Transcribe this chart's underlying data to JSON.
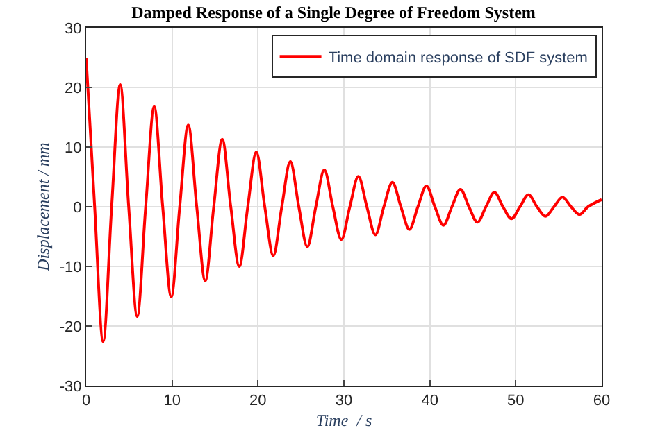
{
  "chart_data": {
    "type": "line",
    "title": "Damped Response of a Single Degree of Freedom System",
    "xlabel": "Time  / s",
    "ylabel": "Displacement / mm",
    "series": [
      {
        "name": "Time domain response of SDF system",
        "color": "#ff0000",
        "x": [
          0,
          0.99,
          1.98,
          2.97,
          3.96,
          4.95,
          5.94,
          6.93,
          7.92,
          8.91,
          9.9,
          10.89,
          11.88,
          12.87,
          13.86,
          14.85,
          15.84,
          16.83,
          17.82,
          18.81,
          19.8,
          20.79,
          21.78,
          22.77,
          23.76,
          24.75,
          25.74,
          26.73,
          27.72,
          28.71,
          29.7,
          30.69,
          31.68,
          32.67,
          33.66,
          34.65,
          35.64,
          36.63,
          37.62,
          38.61,
          39.6,
          40.59,
          41.58,
          42.57,
          43.56,
          44.55,
          45.54,
          46.53,
          47.52,
          48.51,
          49.5,
          50.49,
          51.48,
          52.47,
          53.46,
          54.45,
          55.44,
          56.43,
          57.42,
          58.41,
          60
        ],
        "values": [
          25,
          0,
          -22.6,
          0,
          20.5,
          0,
          -18.4,
          0,
          16.8,
          0,
          -15.1,
          0,
          13.7,
          0,
          -12.4,
          0,
          11.3,
          0,
          -10,
          0,
          9.2,
          0,
          -8.2,
          0,
          7.6,
          0,
          -6.7,
          0,
          6.2,
          0,
          -5.5,
          0,
          5.1,
          0,
          -4.7,
          0,
          4.1,
          0,
          -3.8,
          0,
          3.5,
          0,
          -3.1,
          0,
          2.9,
          0,
          -2.6,
          0,
          2.4,
          0,
          -2.0,
          0,
          2.0,
          0,
          -1.6,
          0,
          1.6,
          0,
          -1.3,
          0,
          1.2
        ]
      }
    ],
    "xlim": [
      0,
      60
    ],
    "xticks": [
      0,
      10,
      20,
      30,
      40,
      50,
      60
    ],
    "ylim": [
      -30,
      30
    ],
    "yticks": [
      -30,
      -20,
      -10,
      0,
      10,
      20,
      30
    ],
    "grid": true,
    "legend": "top right",
    "marker": "none",
    "line_style": "solid"
  }
}
